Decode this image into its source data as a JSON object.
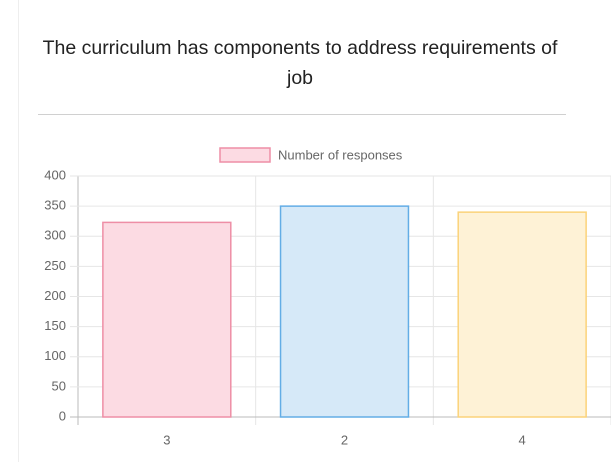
{
  "chart_data": {
    "type": "bar",
    "title": "The curriculum has components to address requirements of job",
    "categories": [
      "3",
      "2",
      "4"
    ],
    "series": [
      {
        "name": "Number of responses",
        "colors": [
          "#fcdbe3",
          "#d6e9f8",
          "#fef2d6"
        ],
        "border_colors": [
          "#ee8ea6",
          "#63ade6",
          "#fbd37a"
        ],
        "values": [
          323,
          350,
          340
        ]
      }
    ],
    "ylim": [
      0,
      400
    ],
    "yticks": [
      0,
      50,
      100,
      150,
      200,
      250,
      300,
      350,
      400
    ],
    "grid": true,
    "legend": "top"
  }
}
